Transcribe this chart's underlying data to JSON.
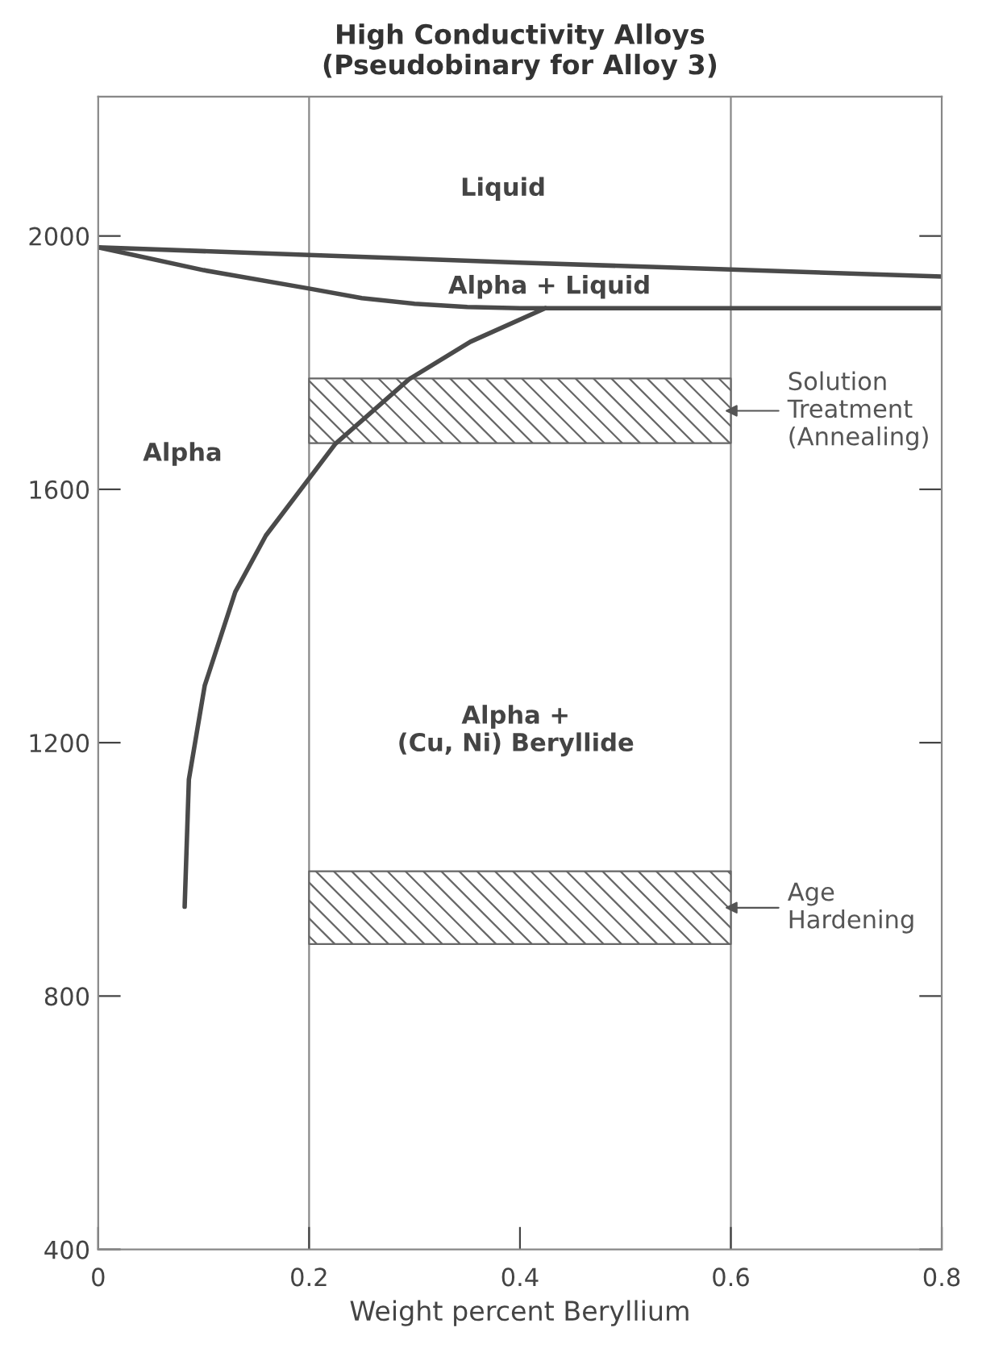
{
  "chart_data": {
    "type": "line",
    "title": "High Conductivity Alloys\n(Pseudobinary for Alloy 3)",
    "xlabel": "Weight percent Beryllium",
    "xlim": [
      0,
      0.8
    ],
    "xticks": [
      0,
      0.2,
      0.4,
      0.6,
      0.8
    ],
    "ylim": [
      400,
      2220
    ],
    "yticks": [
      400,
      800,
      1200,
      1600,
      2000
    ],
    "color": "#4a4a4a",
    "series": [
      {
        "x": [
          0,
          0.2,
          0.4,
          0.6,
          0.8
        ],
        "values": [
          1982,
          1970,
          1958,
          1947,
          1936
        ]
      },
      {
        "x": [
          0,
          0.1,
          0.2,
          0.25,
          0.3,
          0.35,
          0.4,
          0.6,
          0.8
        ],
        "values": [
          1982,
          1946,
          1917,
          1902,
          1893,
          1888,
          1886,
          1886,
          1886
        ]
      },
      {
        "x": [
          0.082,
          0.086,
          0.101,
          0.13,
          0.159,
          0.225,
          0.295,
          0.353,
          0.424
        ],
        "values": [
          941,
          1142,
          1290,
          1438,
          1527,
          1672,
          1774,
          1833,
          1886
        ]
      }
    ],
    "bands": [
      {
        "axis": "y",
        "from": 1673,
        "to": 1775,
        "label": "Solution\nTreatment\n(Annealing)",
        "color": "#666666"
      },
      {
        "axis": "y",
        "from": 882,
        "to": 997,
        "label": "Age\nHardening",
        "color": "#666666"
      }
    ],
    "ref_lines": [
      {
        "axis": "x",
        "value": 0.2,
        "color": "#888888"
      },
      {
        "axis": "x",
        "value": 0.6,
        "color": "#888888"
      }
    ],
    "annotations": [
      "Liquid",
      "Alpha + Liquid",
      "Alpha",
      "Alpha +\n(Cu, Ni) Beryllide"
    ],
    "grid": false,
    "legend": false
  }
}
